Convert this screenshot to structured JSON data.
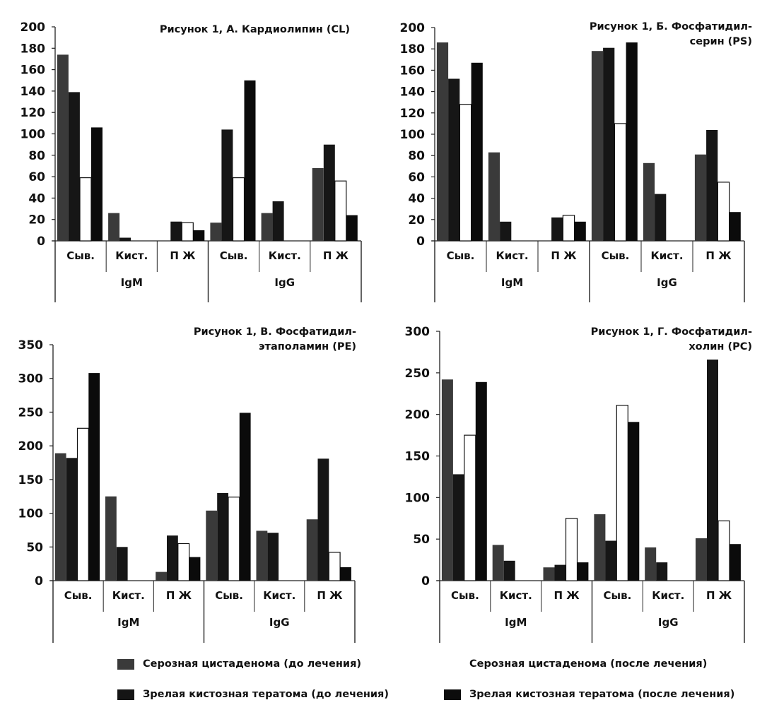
{
  "series_legend": [
    {
      "label": "Серозная цистаденома (до лечения)",
      "color": "#3a3a3a"
    },
    {
      "label": "Серозная цистаденома (после лечения)",
      "color": "#ffffff"
    },
    {
      "label": "Зрелая кистозная тератома (до лечения)",
      "color": "#151515"
    },
    {
      "label": "Зрелая кистозная тератома (после лечения)",
      "color": "#0c0c0c"
    }
  ],
  "chart_data": [
    {
      "type": "bar",
      "title_lines": [
        "Рисунок 1, А. Кардиолипин (CL)"
      ],
      "categories": [
        "Сыв.",
        "Кист.",
        "П Ж",
        "Сыв.",
        "Кист.",
        "П Ж"
      ],
      "groups": [
        "IgM",
        "IgG"
      ],
      "yticks": [
        0,
        20,
        40,
        60,
        80,
        100,
        120,
        140,
        160,
        180,
        200
      ],
      "ylim": [
        0,
        200
      ],
      "grid": false,
      "legend": "bottom",
      "series": [
        {
          "name": "Серозная цистаденома (до лечения)",
          "values": [
            174,
            26,
            0,
            17,
            26,
            68
          ]
        },
        {
          "name": "Зрелая кистозная тератома (до лечения)",
          "values": [
            139,
            3,
            18,
            104,
            37,
            90
          ]
        },
        {
          "name": "Серозная цистаденома (после лечения)",
          "values": [
            59,
            0,
            17,
            59,
            0,
            56
          ]
        },
        {
          "name": "Зрелая кистозная тератома (после лечения)",
          "values": [
            106,
            0,
            10,
            150,
            0,
            24
          ]
        }
      ]
    },
    {
      "type": "bar",
      "title_lines": [
        "Рисунок 1, Б. Фосфатидил-",
        "серин (PS)"
      ],
      "categories": [
        "Сыв.",
        "Кист.",
        "П Ж",
        "Сыв.",
        "Кист.",
        "П Ж"
      ],
      "groups": [
        "IgM",
        "IgG"
      ],
      "yticks": [
        0,
        20,
        40,
        60,
        80,
        100,
        120,
        140,
        160,
        180,
        200
      ],
      "ylim": [
        0,
        200
      ],
      "grid": false,
      "legend": "bottom",
      "series": [
        {
          "name": "Серозная цистаденома (до лечения)",
          "values": [
            186,
            83,
            0,
            178,
            73,
            81
          ]
        },
        {
          "name": "Зрелая кистозная тератома (до лечения)",
          "values": [
            152,
            18,
            22,
            181,
            44,
            104
          ]
        },
        {
          "name": "Серозная цистаденома (после лечения)",
          "values": [
            128,
            0,
            24,
            110,
            0,
            55
          ]
        },
        {
          "name": "Зрелая кистозная тератома (после лечения)",
          "values": [
            167,
            0,
            18,
            186,
            0,
            27
          ]
        }
      ]
    },
    {
      "type": "bar",
      "title_lines": [
        "Рисунок 1, В. Фосфатидил-",
        "этаполамин (PE)"
      ],
      "categories": [
        "Сыв.",
        "Кист.",
        "П Ж",
        "Сыв.",
        "Кист.",
        "П Ж"
      ],
      "groups": [
        "IgM",
        "IgG"
      ],
      "yticks": [
        0,
        50,
        100,
        150,
        200,
        250,
        300,
        350
      ],
      "ylim": [
        0,
        350
      ],
      "grid": false,
      "legend": "bottom",
      "series": [
        {
          "name": "Серозная цистаденома (до лечения)",
          "values": [
            189,
            125,
            13,
            104,
            74,
            91
          ]
        },
        {
          "name": "Зрелая кистозная тератома (до лечения)",
          "values": [
            182,
            50,
            67,
            130,
            71,
            181
          ]
        },
        {
          "name": "Серозная цистаденома (после лечения)",
          "values": [
            226,
            0,
            55,
            124,
            0,
            42
          ]
        },
        {
          "name": "Зрелая кистозная тератома (после лечения)",
          "values": [
            308,
            0,
            35,
            249,
            0,
            20
          ]
        }
      ]
    },
    {
      "type": "bar",
      "title_lines": [
        "Рисунок 1, Г. Фосфатидил-",
        "холин (PC)"
      ],
      "categories": [
        "Сыв.",
        "Кист.",
        "П Ж",
        "Сыв.",
        "Кист.",
        "П Ж"
      ],
      "groups": [
        "IgM",
        "IgG"
      ],
      "yticks": [
        0,
        50,
        100,
        150,
        200,
        250,
        300
      ],
      "ylim": [
        0,
        300
      ],
      "grid": false,
      "legend": "bottom",
      "series": [
        {
          "name": "Серозная цистаденома (до лечения)",
          "values": [
            242,
            43,
            16,
            80,
            40,
            51
          ]
        },
        {
          "name": "Зрелая кистозная тератома (до лечения)",
          "values": [
            128,
            24,
            19,
            48,
            22,
            266
          ]
        },
        {
          "name": "Серозная цистаденома (после лечения)",
          "values": [
            175,
            0,
            75,
            211,
            0,
            72
          ]
        },
        {
          "name": "Зрелая кистозная тератома (после лечения)",
          "values": [
            239,
            0,
            22,
            191,
            0,
            44
          ]
        }
      ]
    }
  ]
}
